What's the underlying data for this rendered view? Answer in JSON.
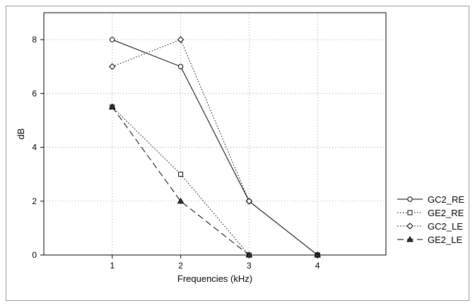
{
  "chart_data": {
    "type": "line",
    "title": "",
    "xlabel": "Frequencies (kHz)",
    "ylabel": "dB",
    "x": [
      1,
      2,
      3,
      4
    ],
    "xlim": [
      0,
      5
    ],
    "ylim": [
      0,
      9
    ],
    "xticks": [
      1,
      2,
      3,
      4
    ],
    "yticks": [
      0,
      2,
      4,
      6,
      8
    ],
    "grid": true,
    "legend_position": "right",
    "series": [
      {
        "name": "GC2_RE",
        "values": [
          8,
          7,
          2,
          0
        ],
        "marker": "circle",
        "line_style": "solid"
      },
      {
        "name": "GE2_RE",
        "values": [
          5.5,
          3,
          0,
          0
        ],
        "marker": "square",
        "line_style": "dotted"
      },
      {
        "name": "GC2_LE",
        "values": [
          7,
          8,
          2,
          0
        ],
        "marker": "diamond",
        "line_style": "dotted"
      },
      {
        "name": "GE2_LE",
        "values": [
          5.5,
          2,
          0,
          0
        ],
        "marker": "triangle",
        "line_style": "dashed"
      }
    ],
    "colors": {
      "line": "#000000",
      "grid": "#8c8c8c",
      "frame": "#9a9a9a"
    }
  }
}
